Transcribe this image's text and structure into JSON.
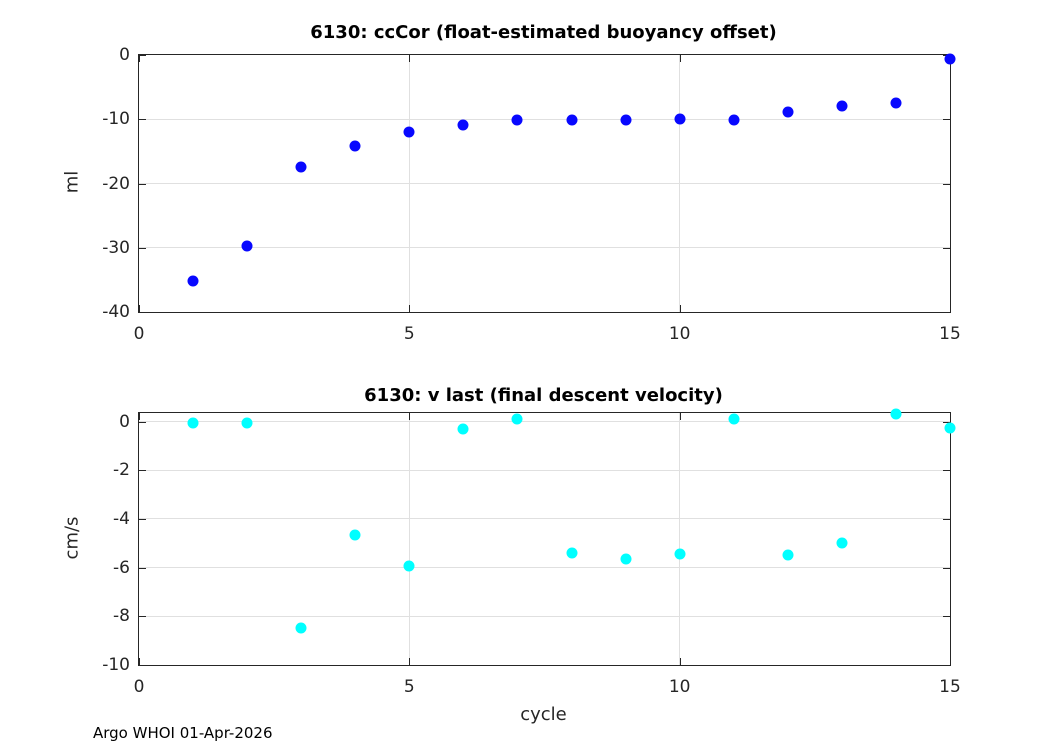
{
  "figure": {
    "footer": "Argo WHOI 01-Apr-2026",
    "background": "#ffffff"
  },
  "colors": {
    "axis": "#262626",
    "grid": "#e0e0e0",
    "tick_label": "#262626",
    "title": "#000000",
    "top_marker": "#0808ff",
    "bottom_marker": "#00ffff"
  },
  "chart_data": [
    {
      "type": "scatter",
      "title": "6130: ccCor (float-estimated buoyancy offset)",
      "xlabel": "",
      "ylabel": "ml",
      "x": [
        1,
        2,
        3,
        4,
        5,
        6,
        7,
        8,
        9,
        10,
        11,
        12,
        13,
        14,
        15
      ],
      "y": [
        -35.1,
        -29.8,
        -17.5,
        -14.2,
        -12.0,
        -10.9,
        -10.1,
        -10.1,
        -10.1,
        -10.0,
        -10.1,
        -8.9,
        -8.0,
        -7.4,
        -0.6
      ],
      "marker_color": "#0808ff",
      "marker_size": 11,
      "xlim": [
        0,
        15
      ],
      "ylim": [
        -40,
        0
      ],
      "xticks": [
        0,
        5,
        10,
        15
      ],
      "yticks": [
        0,
        -10,
        -20,
        -30,
        -40
      ],
      "grid": true,
      "legend": null
    },
    {
      "type": "scatter",
      "title": "6130: v last (final descent velocity)",
      "xlabel": "cycle",
      "ylabel": "cm/s",
      "x": [
        1,
        2,
        3,
        4,
        5,
        6,
        7,
        8,
        9,
        10,
        11,
        12,
        13,
        14,
        15
      ],
      "y": [
        -0.05,
        -0.05,
        -8.5,
        -4.65,
        -5.95,
        -0.3,
        0.1,
        -5.4,
        -5.65,
        -5.45,
        0.1,
        -5.5,
        -5.0,
        0.3,
        -0.25
      ],
      "marker_color": "#00ffff",
      "marker_size": 11,
      "xlim": [
        0,
        15
      ],
      "ylim": [
        -10,
        0.35
      ],
      "xticks": [
        0,
        5,
        10,
        15
      ],
      "yticks": [
        0,
        -2,
        -4,
        -6,
        -8,
        -10
      ],
      "grid": true,
      "legend": null
    }
  ]
}
